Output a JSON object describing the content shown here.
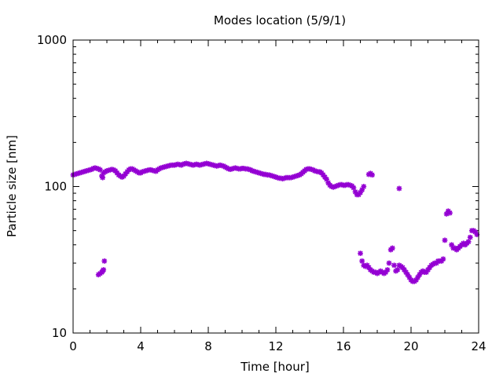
{
  "chart_data": {
    "type": "scatter",
    "title": "Modes location (5/9/1)",
    "xlabel": "Time [hour]",
    "ylabel": "Particle size [nm]",
    "xlim": [
      0,
      24
    ],
    "ylim": [
      10,
      1000
    ],
    "yscale": "log",
    "grid": false,
    "legend": "none",
    "marker_color": "#9400d3",
    "marker": "star",
    "x_ticks": [
      "0",
      "4",
      "8",
      "12",
      "16",
      "20",
      "24"
    ],
    "x_tick_values": [
      0,
      4,
      8,
      12,
      16,
      20,
      24
    ],
    "y_ticks": [
      "10",
      "100",
      "1000"
    ],
    "y_tick_values": [
      10,
      100,
      1000
    ],
    "series": [
      {
        "points": [
          [
            0.0,
            120
          ],
          [
            0.1,
            121
          ],
          [
            0.2,
            122
          ],
          [
            0.3,
            123
          ],
          [
            0.4,
            124
          ],
          [
            0.5,
            125
          ],
          [
            0.6,
            126
          ],
          [
            0.7,
            127
          ],
          [
            0.8,
            128
          ],
          [
            0.9,
            129
          ],
          [
            1.0,
            130
          ],
          [
            1.1,
            131
          ],
          [
            1.2,
            133
          ],
          [
            1.3,
            134
          ],
          [
            1.4,
            133
          ],
          [
            1.5,
            132
          ],
          [
            1.6,
            130
          ],
          [
            1.7,
            118
          ],
          [
            1.75,
            115
          ],
          [
            1.8,
            124
          ],
          [
            1.9,
            126
          ],
          [
            2.0,
            128
          ],
          [
            2.1,
            129
          ],
          [
            2.2,
            130
          ],
          [
            2.3,
            131
          ],
          [
            2.4,
            130
          ],
          [
            2.5,
            128
          ],
          [
            2.6,
            124
          ],
          [
            2.7,
            120
          ],
          [
            2.8,
            118
          ],
          [
            2.9,
            116
          ],
          [
            3.0,
            118
          ],
          [
            3.1,
            122
          ],
          [
            3.2,
            126
          ],
          [
            3.3,
            130
          ],
          [
            3.4,
            132
          ],
          [
            3.5,
            132
          ],
          [
            3.6,
            130
          ],
          [
            3.7,
            128
          ],
          [
            3.8,
            126
          ],
          [
            3.9,
            124
          ],
          [
            4.0,
            124
          ],
          [
            4.1,
            126
          ],
          [
            4.2,
            127
          ],
          [
            4.3,
            128
          ],
          [
            4.4,
            129
          ],
          [
            4.5,
            130
          ],
          [
            4.6,
            130
          ],
          [
            4.7,
            129
          ],
          [
            4.8,
            128
          ],
          [
            4.9,
            127
          ],
          [
            5.0,
            130
          ],
          [
            5.1,
            132
          ],
          [
            5.2,
            134
          ],
          [
            5.3,
            135
          ],
          [
            5.4,
            136
          ],
          [
            5.5,
            137
          ],
          [
            5.6,
            138
          ],
          [
            5.7,
            139
          ],
          [
            5.8,
            140
          ],
          [
            5.9,
            140
          ],
          [
            6.0,
            140
          ],
          [
            6.1,
            141
          ],
          [
            6.2,
            142
          ],
          [
            6.3,
            141
          ],
          [
            6.4,
            140
          ],
          [
            6.5,
            142
          ],
          [
            6.6,
            143
          ],
          [
            6.7,
            144
          ],
          [
            6.8,
            143
          ],
          [
            6.9,
            142
          ],
          [
            7.0,
            141
          ],
          [
            7.1,
            140
          ],
          [
            7.2,
            141
          ],
          [
            7.3,
            142
          ],
          [
            7.4,
            141
          ],
          [
            7.5,
            140
          ],
          [
            7.6,
            141
          ],
          [
            7.7,
            142
          ],
          [
            7.8,
            143
          ],
          [
            7.9,
            144
          ],
          [
            8.0,
            143
          ],
          [
            8.1,
            142
          ],
          [
            8.2,
            141
          ],
          [
            8.3,
            140
          ],
          [
            8.4,
            139
          ],
          [
            8.5,
            138
          ],
          [
            8.6,
            139
          ],
          [
            8.7,
            140
          ],
          [
            8.8,
            139
          ],
          [
            8.9,
            138
          ],
          [
            9.0,
            136
          ],
          [
            9.1,
            134
          ],
          [
            9.2,
            132
          ],
          [
            9.3,
            131
          ],
          [
            9.4,
            132
          ],
          [
            9.5,
            133
          ],
          [
            9.6,
            134
          ],
          [
            9.7,
            133
          ],
          [
            9.8,
            132
          ],
          [
            9.9,
            132
          ],
          [
            10.0,
            133
          ],
          [
            10.1,
            133
          ],
          [
            10.2,
            132
          ],
          [
            10.3,
            132
          ],
          [
            10.4,
            131
          ],
          [
            10.5,
            130
          ],
          [
            10.6,
            128
          ],
          [
            10.7,
            127
          ],
          [
            10.8,
            126
          ],
          [
            10.9,
            125
          ],
          [
            11.0,
            124
          ],
          [
            11.1,
            123
          ],
          [
            11.2,
            122
          ],
          [
            11.3,
            121
          ],
          [
            11.4,
            121
          ],
          [
            11.5,
            120
          ],
          [
            11.6,
            120
          ],
          [
            11.7,
            119
          ],
          [
            11.8,
            118
          ],
          [
            11.9,
            117
          ],
          [
            12.0,
            116
          ],
          [
            12.1,
            115
          ],
          [
            12.2,
            114
          ],
          [
            12.3,
            114
          ],
          [
            12.4,
            113
          ],
          [
            12.5,
            114
          ],
          [
            12.6,
            115
          ],
          [
            12.7,
            115
          ],
          [
            12.8,
            115
          ],
          [
            12.9,
            115
          ],
          [
            13.0,
            116
          ],
          [
            13.1,
            117
          ],
          [
            13.2,
            118
          ],
          [
            13.3,
            119
          ],
          [
            13.4,
            120
          ],
          [
            13.5,
            122
          ],
          [
            13.6,
            125
          ],
          [
            13.7,
            128
          ],
          [
            13.8,
            131
          ],
          [
            13.9,
            132
          ],
          [
            14.0,
            132
          ],
          [
            14.1,
            131
          ],
          [
            14.2,
            130
          ],
          [
            14.3,
            128
          ],
          [
            14.4,
            127
          ],
          [
            14.5,
            126
          ],
          [
            14.6,
            126
          ],
          [
            14.7,
            124
          ],
          [
            14.8,
            120
          ],
          [
            14.9,
            116
          ],
          [
            15.0,
            112
          ],
          [
            15.1,
            106
          ],
          [
            15.2,
            102
          ],
          [
            15.3,
            100
          ],
          [
            15.4,
            99
          ],
          [
            15.5,
            100
          ],
          [
            15.6,
            101
          ],
          [
            15.7,
            102
          ],
          [
            15.8,
            103
          ],
          [
            15.9,
            103
          ],
          [
            16.0,
            102
          ],
          [
            16.1,
            102
          ],
          [
            16.2,
            103
          ],
          [
            16.3,
            103
          ],
          [
            16.4,
            102
          ],
          [
            16.5,
            101
          ],
          [
            16.6,
            98
          ],
          [
            16.7,
            92
          ],
          [
            16.8,
            88
          ],
          [
            16.9,
            88
          ],
          [
            17.0,
            91
          ],
          [
            17.1,
            95
          ],
          [
            17.2,
            100
          ],
          [
            17.5,
            121
          ],
          [
            17.6,
            123
          ],
          [
            17.7,
            120
          ],
          [
            19.3,
            97
          ],
          [
            1.5,
            25
          ],
          [
            1.6,
            25.5
          ],
          [
            1.7,
            26
          ],
          [
            1.75,
            26.5
          ],
          [
            1.8,
            27
          ],
          [
            1.85,
            31
          ],
          [
            17.0,
            35
          ],
          [
            17.1,
            31
          ],
          [
            17.2,
            29
          ],
          [
            17.3,
            28.5
          ],
          [
            17.4,
            29
          ],
          [
            17.5,
            28
          ],
          [
            17.6,
            27
          ],
          [
            17.7,
            26.5
          ],
          [
            17.8,
            26
          ],
          [
            17.9,
            26
          ],
          [
            18.0,
            25.5
          ],
          [
            18.1,
            26
          ],
          [
            18.2,
            26.5
          ],
          [
            18.3,
            26
          ],
          [
            18.4,
            25.5
          ],
          [
            18.5,
            26
          ],
          [
            18.6,
            27
          ],
          [
            18.7,
            30
          ],
          [
            18.8,
            37
          ],
          [
            18.9,
            38
          ],
          [
            19.0,
            29
          ],
          [
            19.1,
            26.5
          ],
          [
            19.2,
            27
          ],
          [
            19.3,
            29
          ],
          [
            19.4,
            28.5
          ],
          [
            19.5,
            28
          ],
          [
            19.6,
            27
          ],
          [
            19.7,
            26
          ],
          [
            19.8,
            25
          ],
          [
            19.9,
            24
          ],
          [
            20.0,
            23
          ],
          [
            20.1,
            22.5
          ],
          [
            20.2,
            22.5
          ],
          [
            20.3,
            23
          ],
          [
            20.4,
            24
          ],
          [
            20.5,
            25
          ],
          [
            20.6,
            26
          ],
          [
            20.7,
            26.5
          ],
          [
            20.8,
            26
          ],
          [
            20.9,
            26
          ],
          [
            21.0,
            27
          ],
          [
            21.1,
            28
          ],
          [
            21.2,
            29
          ],
          [
            21.3,
            29.5
          ],
          [
            21.4,
            30
          ],
          [
            21.5,
            30
          ],
          [
            21.6,
            31
          ],
          [
            21.7,
            31
          ],
          [
            21.8,
            31
          ],
          [
            21.9,
            32
          ],
          [
            22.0,
            43
          ],
          [
            22.1,
            65
          ],
          [
            22.2,
            68
          ],
          [
            22.3,
            66
          ],
          [
            22.4,
            40
          ],
          [
            22.5,
            38
          ],
          [
            22.6,
            38
          ],
          [
            22.7,
            37
          ],
          [
            22.8,
            38
          ],
          [
            22.9,
            39
          ],
          [
            23.0,
            40
          ],
          [
            23.1,
            41
          ],
          [
            23.2,
            40
          ],
          [
            23.3,
            41
          ],
          [
            23.4,
            42
          ],
          [
            23.5,
            45
          ],
          [
            23.6,
            50
          ],
          [
            23.7,
            50
          ],
          [
            23.8,
            49
          ],
          [
            23.9,
            47
          ]
        ]
      }
    ]
  }
}
